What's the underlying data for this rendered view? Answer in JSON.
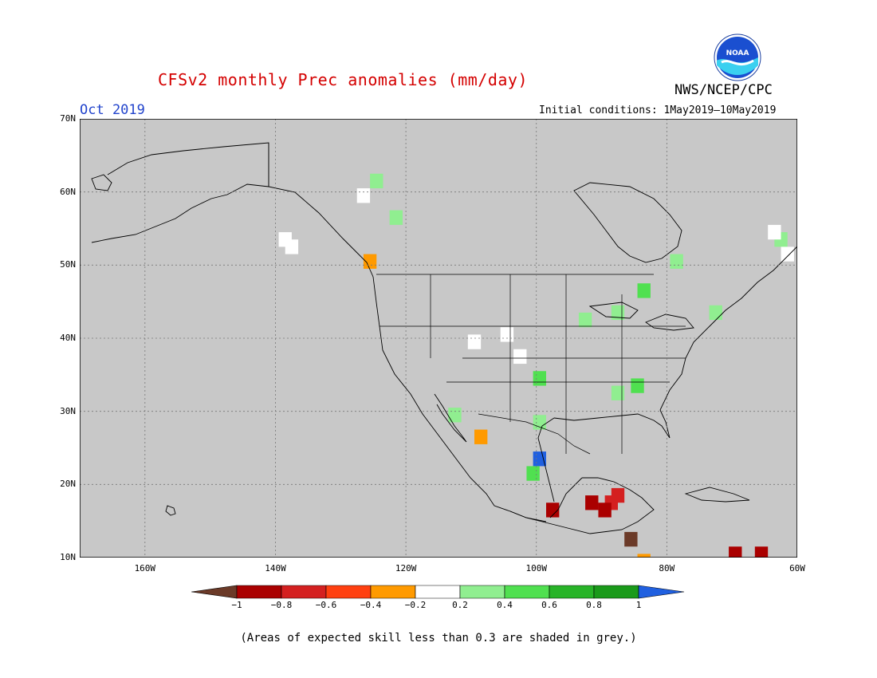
{
  "header": {
    "title": "CFSv2 monthly Prec anomalies (mm/day)",
    "agency": "NWS/NCEP/CPC",
    "period": "Oct 2019",
    "initial_conditions": "Initial conditions: 1May2019—10May2019",
    "logo_text": "NOAA"
  },
  "axes": {
    "lat_labels": [
      "70N",
      "60N",
      "50N",
      "40N",
      "30N",
      "20N",
      "10N"
    ],
    "lon_labels": [
      "160W",
      "140W",
      "120W",
      "100W",
      "80W",
      "60W"
    ]
  },
  "colorbar": {
    "labels": [
      "−1",
      "−0.8",
      "−0.6",
      "−0.4",
      "−0.2",
      "0.2",
      "0.4",
      "0.6",
      "0.8",
      "1"
    ],
    "colors": [
      "#6b3a28",
      "#aa0000",
      "#d42020",
      "#ff4010",
      "#ff9a00",
      "#ffffff",
      "#90ee90",
      "#50e050",
      "#28b428",
      "#1a9a1a",
      "#2060e0"
    ]
  },
  "map": {
    "background": "#c8c8c8",
    "lat_range": [
      10,
      70
    ],
    "lon_range": [
      -170,
      -60
    ],
    "anomaly_cells": [
      {
        "lon": -139,
        "lat": 54,
        "v": -0.1
      },
      {
        "lon": -138,
        "lat": 53,
        "v": 0.1
      },
      {
        "lon": -127,
        "lat": 60,
        "v": 0.1
      },
      {
        "lon": -125,
        "lat": 62,
        "v": 0.3
      },
      {
        "lon": -122,
        "lat": 57,
        "v": 0.3
      },
      {
        "lon": -126,
        "lat": 51,
        "v": -0.3
      },
      {
        "lon": -110,
        "lat": 40,
        "v": 0.1
      },
      {
        "lon": -105,
        "lat": 41,
        "v": 0.1
      },
      {
        "lon": -103,
        "lat": 38,
        "v": 0.1
      },
      {
        "lon": -100,
        "lat": 35,
        "v": 0.5
      },
      {
        "lon": -93,
        "lat": 43,
        "v": 0.3
      },
      {
        "lon": -88,
        "lat": 44,
        "v": 0.4
      },
      {
        "lon": -84,
        "lat": 47,
        "v": 0.5
      },
      {
        "lon": -79,
        "lat": 51,
        "v": 0.4
      },
      {
        "lon": -73,
        "lat": 44,
        "v": 0.3
      },
      {
        "lon": -88,
        "lat": 33,
        "v": 0.3
      },
      {
        "lon": -85,
        "lat": 34,
        "v": 0.5
      },
      {
        "lon": -113,
        "lat": 30,
        "v": 0.3
      },
      {
        "lon": -109,
        "lat": 27,
        "v": -0.3
      },
      {
        "lon": -100,
        "lat": 24,
        "v": 1.1
      },
      {
        "lon": -101,
        "lat": 22,
        "v": 0.6
      },
      {
        "lon": -100,
        "lat": 29,
        "v": 0.3
      },
      {
        "lon": -88,
        "lat": 19,
        "v": -0.6
      },
      {
        "lon": -89,
        "lat": 18,
        "v": -0.7
      },
      {
        "lon": -90,
        "lat": 17,
        "v": -0.9
      },
      {
        "lon": -92,
        "lat": 18,
        "v": -0.8
      },
      {
        "lon": -98,
        "lat": 17,
        "v": -0.9
      },
      {
        "lon": -86,
        "lat": 13,
        "v": -1.1
      },
      {
        "lon": -84,
        "lat": 10,
        "v": -0.3
      },
      {
        "lon": -70,
        "lat": 11,
        "v": -0.8
      },
      {
        "lon": -66,
        "lat": 11,
        "v": -0.8
      },
      {
        "lon": -63,
        "lat": 54,
        "v": 0.3
      },
      {
        "lon": -62,
        "lat": 52,
        "v": 0.1
      },
      {
        "lon": -64,
        "lat": 55,
        "v": 0.1
      }
    ]
  }
}
